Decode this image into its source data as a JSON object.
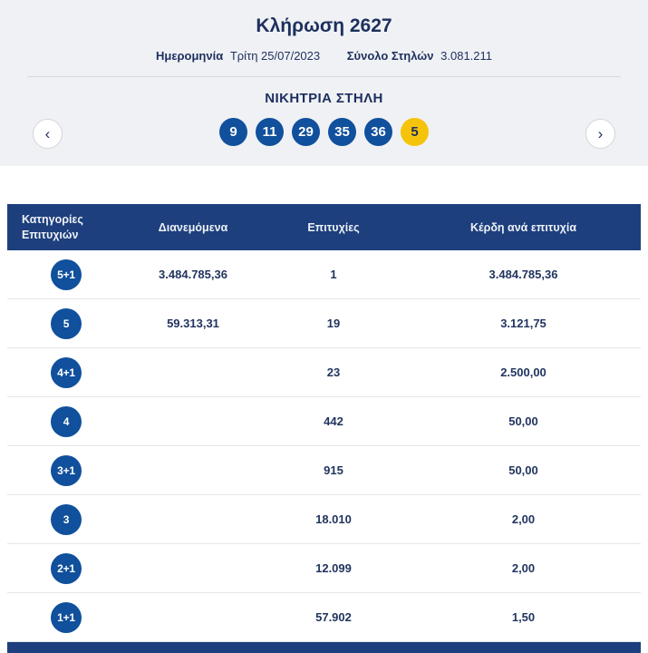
{
  "colors": {
    "navy_bar": "#1d3f7d",
    "ball_blue": "#10509c",
    "joker_yellow": "#f5c40a",
    "text_navy": "#1c2f5e",
    "panel_bg": "#f0f1f4"
  },
  "header": {
    "title": "Κλήρωση 2627",
    "date_label": "Ημερομηνία",
    "date_value": "Τρίτη 25/07/2023",
    "columns_label": "Σύνολο Στηλών",
    "columns_value": "3.081.211",
    "winning_title": "ΝΙΚΗΤΡΙΑ ΣΤΗΛΗ",
    "prev_icon": "‹",
    "next_icon": "›"
  },
  "winning": {
    "numbers": [
      "9",
      "11",
      "29",
      "35",
      "36"
    ],
    "joker": "5"
  },
  "table": {
    "headers": {
      "category": "Κατηγορίες Επιτυχιών",
      "distributed": "Διανεμόμενα",
      "wins": "Επιτυχίες",
      "prize": "Κέρδη ανά επιτυχία"
    },
    "rows": [
      {
        "category": "5+1",
        "distributed": "3.484.785,36",
        "wins": "1",
        "prize": "3.484.785,36"
      },
      {
        "category": "5",
        "distributed": "59.313,31",
        "wins": "19",
        "prize": "3.121,75"
      },
      {
        "category": "4+1",
        "distributed": "",
        "wins": "23",
        "prize": "2.500,00"
      },
      {
        "category": "4",
        "distributed": "",
        "wins": "442",
        "prize": "50,00"
      },
      {
        "category": "3+1",
        "distributed": "",
        "wins": "915",
        "prize": "50,00"
      },
      {
        "category": "3",
        "distributed": "",
        "wins": "18.010",
        "prize": "2,00"
      },
      {
        "category": "2+1",
        "distributed": "",
        "wins": "12.099",
        "prize": "2,00"
      },
      {
        "category": "1+1",
        "distributed": "",
        "wins": "57.902",
        "prize": "1,50"
      }
    ]
  }
}
